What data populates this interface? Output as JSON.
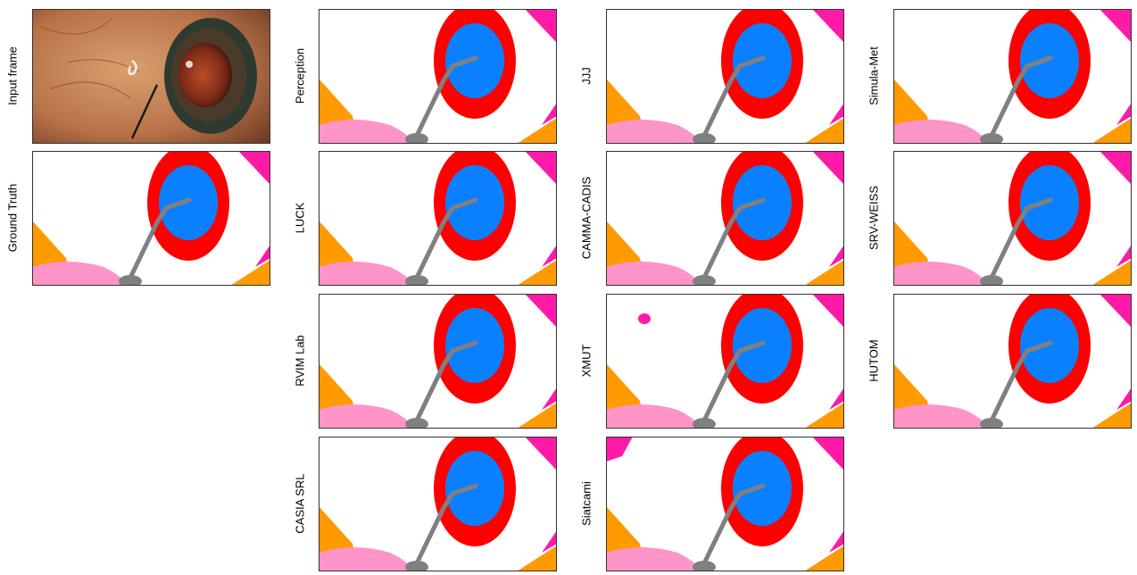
{
  "figure": {
    "panels": [
      {
        "key": "input",
        "label": "Input frame"
      },
      {
        "key": "gt",
        "label": "Ground Truth"
      },
      {
        "key": "perception",
        "label": "Perception"
      },
      {
        "key": "luck",
        "label": "LUCK"
      },
      {
        "key": "rvim",
        "label": "RVIM Lab"
      },
      {
        "key": "casia",
        "label": "CASIA SRL"
      },
      {
        "key": "jjj",
        "label": "JJJ"
      },
      {
        "key": "camma",
        "label": "CAMMA-CADIS"
      },
      {
        "key": "xmut",
        "label": "XMUT"
      },
      {
        "key": "siatcami",
        "label": "Siatcami"
      },
      {
        "key": "simula",
        "label": "Simula-Met"
      },
      {
        "key": "srv",
        "label": "SRV-WEISS"
      },
      {
        "key": "hutom",
        "label": "HUTOM"
      }
    ],
    "colors": {
      "background": "#ffffff",
      "iris": "#ff0000",
      "pupil": "#0a80ff",
      "instrument": "#808080",
      "cornea_edge": "#ff1aa8",
      "tissue_orange": "#ff9a00",
      "tissue_pink": "#ff94c8",
      "border": "#333333"
    }
  }
}
